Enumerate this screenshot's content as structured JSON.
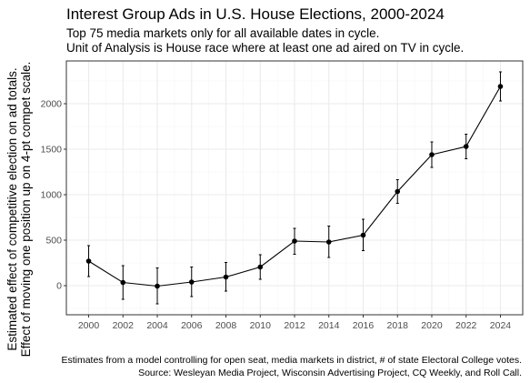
{
  "chart_data": {
    "type": "line",
    "title": "Interest Group Ads in U.S. House Elections, 2000-2024",
    "subtitle": [
      "Top 75 media markets only for all available dates in cycle.",
      "Unit of Analysis is House race where at least one ad aired on TV in cycle."
    ],
    "ylabel": [
      "Estimated effect of competitive election on ad totals.",
      "Effect of moving one position up on 4-pt compet scale."
    ],
    "xlabel": "",
    "caption": [
      "Estimates from a model controlling for open seat, media markets in district, # of state Electoral College votes.",
      "Source: Wesleyan Media Project, Wisconsin Advertising Project, CQ Weekly, and Roll Call."
    ],
    "x": [
      2000,
      2002,
      2004,
      2006,
      2008,
      2010,
      2012,
      2014,
      2016,
      2018,
      2020,
      2022,
      2024
    ],
    "y": [
      270,
      35,
      -5,
      40,
      95,
      205,
      490,
      480,
      555,
      1035,
      1440,
      1530,
      2190
    ],
    "y_lower": [
      100,
      -150,
      -200,
      -120,
      -60,
      70,
      345,
      310,
      385,
      905,
      1300,
      1395,
      2030
    ],
    "y_upper": [
      440,
      220,
      195,
      205,
      255,
      340,
      630,
      655,
      730,
      1165,
      1580,
      1665,
      2350
    ],
    "xticks": [
      2000,
      2002,
      2004,
      2006,
      2008,
      2010,
      2012,
      2014,
      2016,
      2018,
      2020,
      2022,
      2024
    ],
    "yticks": [
      0,
      500,
      1000,
      1500,
      2000
    ],
    "xlim": [
      1998.7,
      2025.3
    ],
    "ylim": [
      -320,
      2470
    ],
    "grid": true,
    "legend": "none",
    "colors": {
      "line": "#000000",
      "point": "#000000",
      "grid_major": "#ebebeb",
      "grid_minor": "#f5f5f5",
      "panel_border": "#333333"
    }
  }
}
